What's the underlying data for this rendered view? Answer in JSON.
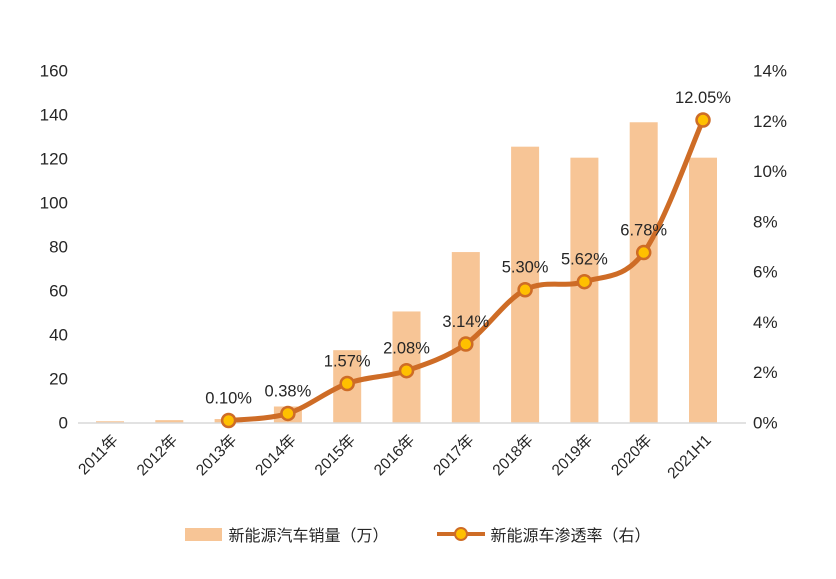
{
  "chart_data": {
    "type": "combo",
    "title": "",
    "categories": [
      "2011年",
      "2012年",
      "2013年",
      "2014年",
      "2015年",
      "2016年",
      "2017年",
      "2018年",
      "2019年",
      "2020年",
      "2021H1"
    ],
    "series": [
      {
        "name": "新能源汽车销量（万）",
        "type": "bar",
        "axis": "left",
        "values": [
          0.8,
          1.3,
          1.8,
          7.5,
          33.1,
          50.7,
          77.7,
          125.6,
          120.6,
          136.7,
          120.6
        ]
      },
      {
        "name": "新能源车渗透率（右）",
        "type": "line",
        "axis": "right",
        "values": [
          null,
          null,
          0.1,
          0.38,
          1.57,
          2.08,
          3.14,
          5.3,
          5.62,
          6.78,
          12.05
        ],
        "point_labels": [
          null,
          null,
          "0.10%",
          "0.38%",
          "1.57%",
          "2.08%",
          "3.14%",
          "5.30%",
          "5.62%",
          "6.78%",
          "12.05%"
        ]
      }
    ],
    "left_axis": {
      "min": 0,
      "max": 160,
      "step": 20,
      "tick_labels": [
        "0",
        "20",
        "40",
        "60",
        "80",
        "100",
        "120",
        "140",
        "160"
      ]
    },
    "right_axis": {
      "min": 0,
      "max": 14,
      "step": 2,
      "tick_labels": [
        "0%",
        "2%",
        "4%",
        "6%",
        "8%",
        "10%",
        "12%",
        "14%"
      ]
    },
    "grid": false,
    "legend_position": "bottom",
    "colors": {
      "bar": "#F7C596",
      "line": "#CE6C26",
      "marker_fill": "#FFC000",
      "marker_stroke": "#CE6C26",
      "axis_line": "#D9D9D9",
      "text": "#262626"
    }
  },
  "legend": {
    "items": [
      {
        "label": "新能源汽车销量（万）",
        "swatch": "bar"
      },
      {
        "label": "新能源车渗透率（右）",
        "swatch": "line-marker"
      }
    ]
  }
}
